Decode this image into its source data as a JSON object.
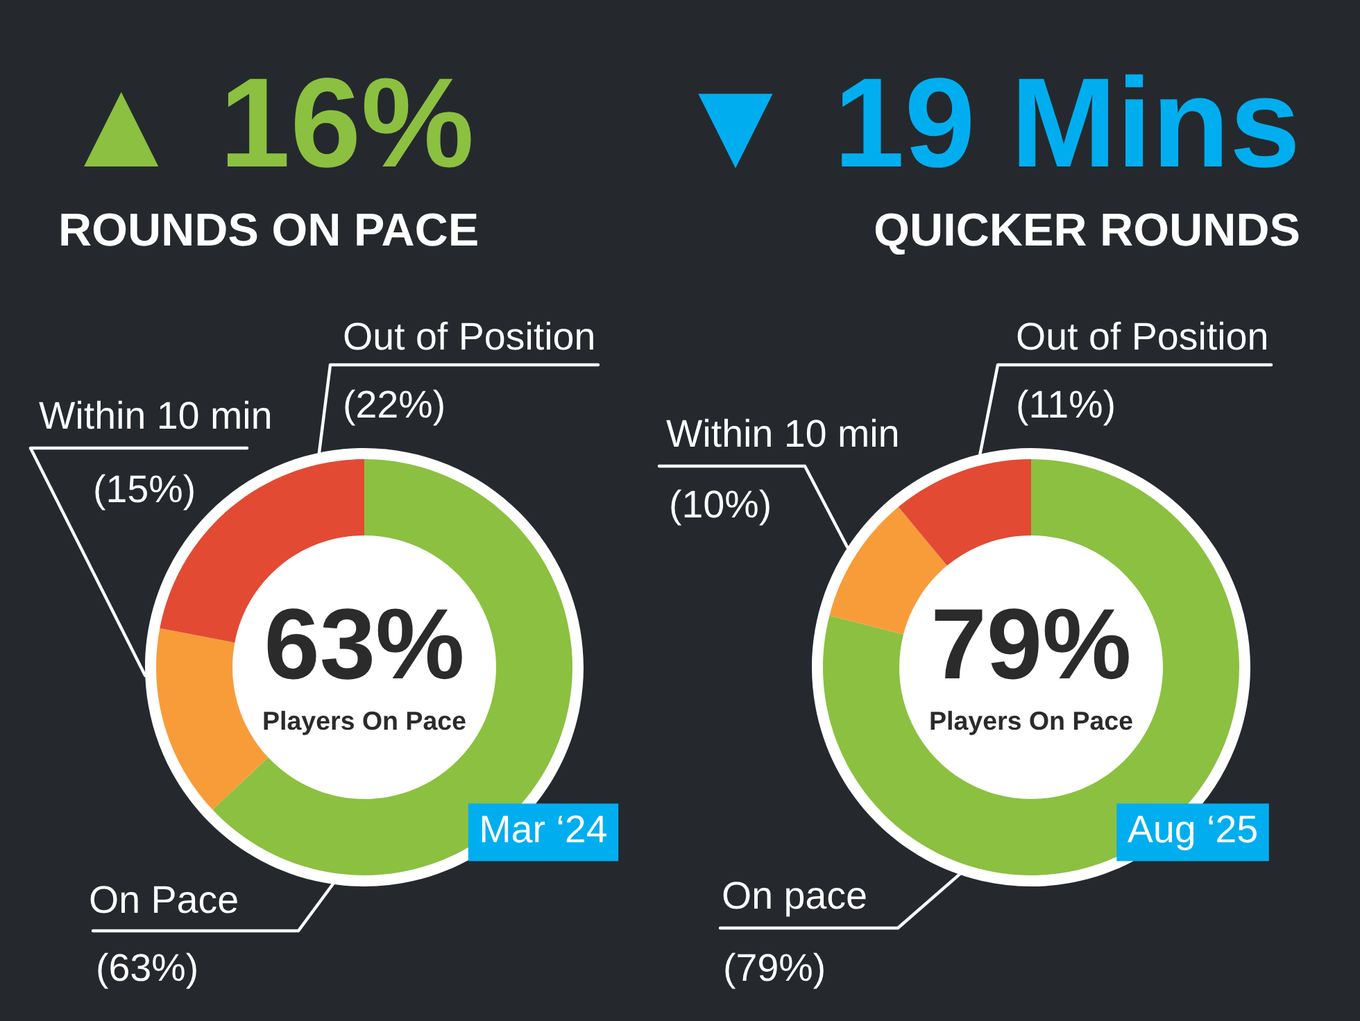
{
  "chart_data": [
    {
      "type": "donut",
      "title": "▲ 16%",
      "subtitle": "ROUNDS ON PACE",
      "categories": [
        "On Pace",
        "Within 10 min",
        "Out of Position"
      ],
      "values": [
        63,
        15,
        22
      ],
      "colors": [
        "#8cc040",
        "#f89c3a",
        "#e34a33"
      ],
      "value_labels": [
        "(63%)",
        "(15%)",
        "(22%)"
      ],
      "annotations": [
        "63%",
        "Players On Pace",
        "Mar ‘24"
      ]
    },
    {
      "type": "donut",
      "title": "▼ 19 Mins",
      "subtitle": "QUICKER ROUNDS",
      "categories": [
        "On pace",
        "Within 10 min",
        "Out of Position"
      ],
      "values": [
        79,
        10,
        11
      ],
      "colors": [
        "#8cc040",
        "#f89c3a",
        "#e34a33"
      ],
      "value_labels": [
        "(79%)",
        "(10%)",
        "(11%)"
      ],
      "annotations": [
        "79%",
        "Players On Pace",
        "Aug ‘25"
      ]
    }
  ]
}
